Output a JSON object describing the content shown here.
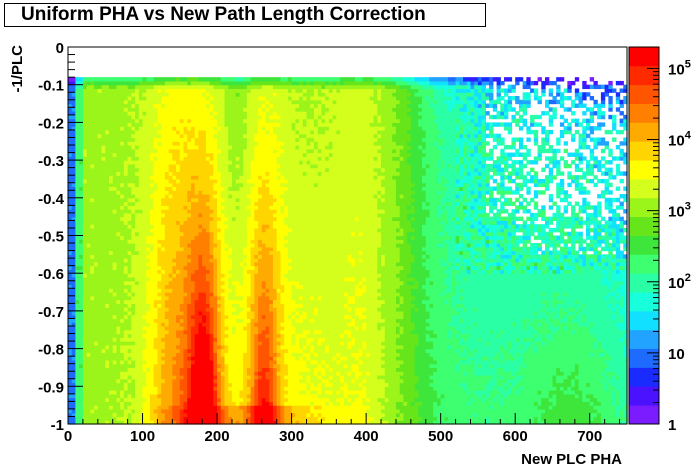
{
  "chart_data": {
    "type": "heatmap",
    "title": "Uniform PHA vs New Path Length Correction",
    "xlabel": "New PLC PHA",
    "ylabel": "-1/PLC",
    "xlim": [
      0,
      750
    ],
    "ylim": [
      -1,
      0
    ],
    "x_ticks": [
      "0",
      "100",
      "200",
      "300",
      "400",
      "500",
      "600",
      "700"
    ],
    "x_tick_values": [
      0,
      100,
      200,
      300,
      400,
      500,
      600,
      700
    ],
    "y_ticks": [
      "-1",
      "-0.9",
      "-0.8",
      "-0.7",
      "-0.6",
      "-0.5",
      "-0.4",
      "-0.3",
      "-0.2",
      "-0.1",
      "0"
    ],
    "y_tick_values": [
      -1,
      -0.9,
      -0.8,
      -0.7,
      -0.6,
      -0.5,
      -0.4,
      -0.3,
      -0.2,
      -0.1,
      0
    ],
    "z_scale": "log",
    "zlim": [
      1,
      200000
    ],
    "z_ticks": [
      {
        "value": 1,
        "base": "1",
        "exp": ""
      },
      {
        "value": 10,
        "base": "10",
        "exp": ""
      },
      {
        "value": 100,
        "base": "10",
        "exp": "2"
      },
      {
        "value": 1000,
        "base": "10",
        "exp": "3"
      },
      {
        "value": 10000,
        "base": "10",
        "exp": "4"
      },
      {
        "value": 100000,
        "base": "10",
        "exp": "5"
      }
    ],
    "grid": false,
    "palette": [
      "#7a1cff",
      "#4a12ff",
      "#1a2bff",
      "#1e6bff",
      "#21a3ff",
      "#12e0ff",
      "#18ffdc",
      "#2affa6",
      "#3dff70",
      "#3ee63b",
      "#66e61a",
      "#9cf51a",
      "#d4ff1c",
      "#ffff00",
      "#ffd500",
      "#ffaa00",
      "#ff7f00",
      "#ff5500",
      "#ff2a00",
      "#ff0000"
    ],
    "max_count_estimates": {
      "peak_x_values": [
        180,
        265
      ],
      "peak_counts": [
        150000,
        70000
      ],
      "upper_edge_y": -0.085
    }
  }
}
